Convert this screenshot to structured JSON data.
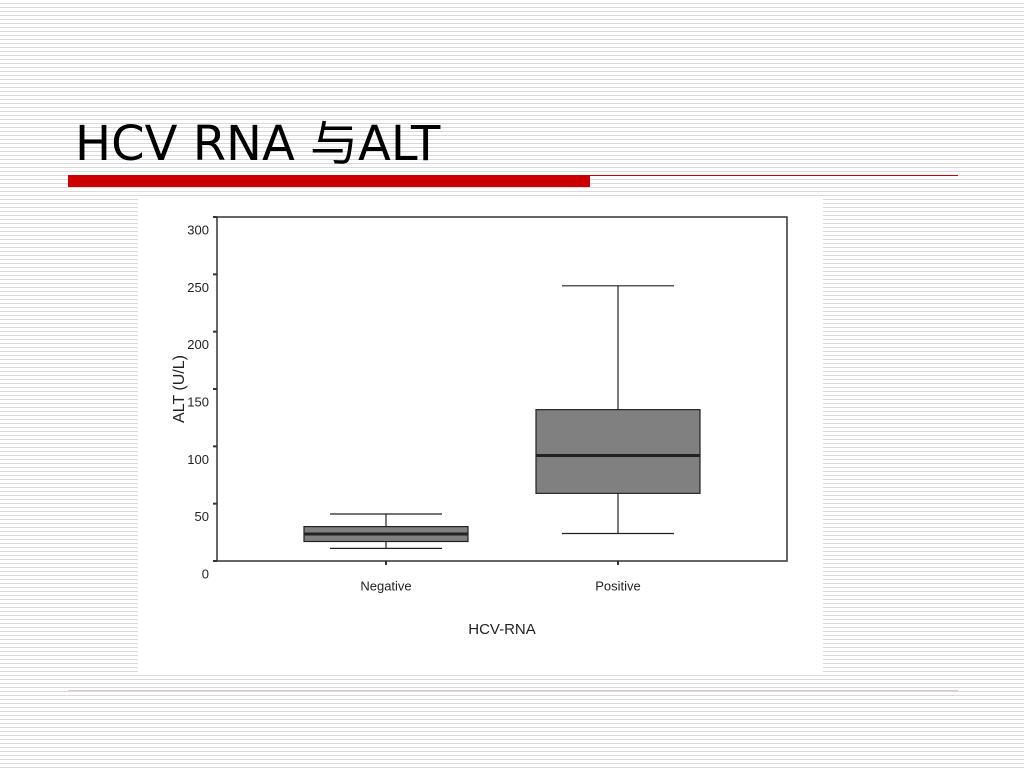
{
  "title": "HCV RNA 与ALT",
  "chart_data": {
    "type": "box",
    "x_label": "HCV-RNA",
    "y_label": "ALT (U/L)",
    "categories": [
      "Negative",
      "Positive"
    ],
    "boxes": [
      {
        "min": 11,
        "q1": 17,
        "median": 23.5,
        "q3": 30,
        "max": 41
      },
      {
        "min": 24,
        "q1": 59,
        "median": 92,
        "q3": 132,
        "max": 240
      }
    ],
    "color": "#808080",
    "ylim": [
      0,
      300
    ],
    "yticks": [
      0,
      50,
      100,
      150,
      200,
      250,
      300
    ]
  }
}
